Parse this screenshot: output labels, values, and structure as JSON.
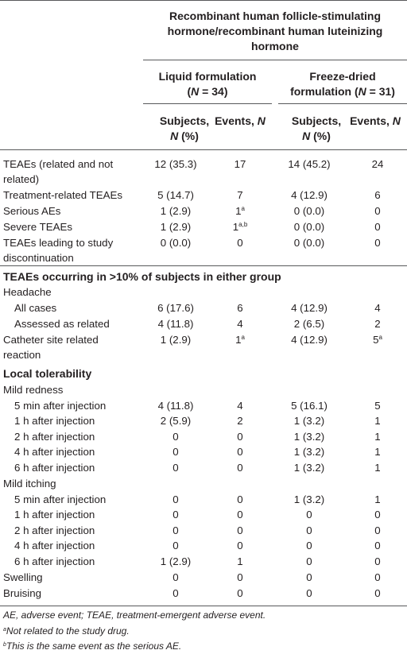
{
  "header": {
    "group": [
      "Recombinant human follicle-stimulating",
      "hormone/recombinant human luteinizing",
      "hormone"
    ],
    "liquid": [
      "Liquid formulation",
      "(N = 34)"
    ],
    "freeze": [
      "Freeze-dried",
      "formulation (N = 31)"
    ],
    "subjects": [
      "Subjects,",
      "N (%)"
    ],
    "events": "Events, N"
  },
  "rows": [
    {
      "label": "TEAEs (related and not",
      "label2": "related)",
      "ls": "12 (35.3)",
      "le": "17",
      "fs": "14 (45.2)",
      "fe": "24"
    },
    {
      "label": "Treatment-related TEAEs",
      "ls": "5 (14.7)",
      "le": "7",
      "fs": "4 (12.9)",
      "fe": "6"
    },
    {
      "label": "Serious AEs",
      "ls": "1 (2.9)",
      "le": "1",
      "le_sup": "a",
      "fs": "0 (0.0)",
      "fe": "0"
    },
    {
      "label": "Severe TEAEs",
      "ls": "1 (2.9)",
      "le": "1",
      "le_sup": "a,b",
      "fs": "0 (0.0)",
      "fe": "0"
    },
    {
      "label": "TEAEs leading to study",
      "label2": "discontinuation",
      "ls": "0 (0.0)",
      "le": "0",
      "fs": "0 (0.0)",
      "fe": "0"
    }
  ],
  "section1": "TEAEs occurring in >10% of subjects in either group",
  "headache": {
    "label": "Headache",
    "rows": [
      {
        "label": "All cases",
        "ls": "6 (17.6)",
        "le": "6",
        "fs": "4 (12.9)",
        "fe": "4"
      },
      {
        "label": "Assessed as related",
        "ls": "4 (11.8)",
        "le": "4",
        "fs": "2 (6.5)",
        "fe": "2"
      }
    ]
  },
  "catheter": {
    "label": "Catheter site related",
    "label2": "reaction",
    "ls": "1 (2.9)",
    "le": "1",
    "le_sup": "a",
    "fs": "4 (12.9)",
    "fe": "5",
    "fe_sup": "a"
  },
  "section2": "Local tolerability",
  "redness": {
    "label": "Mild redness",
    "rows": [
      {
        "label": "5 min after injection",
        "ls": "4 (11.8)",
        "le": "4",
        "fs": "5 (16.1)",
        "fe": "5"
      },
      {
        "label": "1 h after injection",
        "ls": "2 (5.9)",
        "le": "2",
        "fs": "1 (3.2)",
        "fe": "1"
      },
      {
        "label": "2 h after injection",
        "ls": "0",
        "le": "0",
        "fs": "1 (3.2)",
        "fe": "1"
      },
      {
        "label": "4 h after injection",
        "ls": "0",
        "le": "0",
        "fs": "1 (3.2)",
        "fe": "1"
      },
      {
        "label": "6 h after injection",
        "ls": "0",
        "le": "0",
        "fs": "1 (3.2)",
        "fe": "1"
      }
    ]
  },
  "itching": {
    "label": "Mild itching",
    "rows": [
      {
        "label": "5 min after injection",
        "ls": "0",
        "le": "0",
        "fs": "1 (3.2)",
        "fe": "1"
      },
      {
        "label": "1 h after injection",
        "ls": "0",
        "le": "0",
        "fs": "0",
        "fe": "0"
      },
      {
        "label": "2 h after injection",
        "ls": "0",
        "le": "0",
        "fs": "0",
        "fe": "0"
      },
      {
        "label": "4 h after injection",
        "ls": "0",
        "le": "0",
        "fs": "0",
        "fe": "0"
      },
      {
        "label": "6 h after injection",
        "ls": "1 (2.9)",
        "le": "1",
        "fs": "0",
        "fe": "0"
      }
    ]
  },
  "tail": [
    {
      "label": "Swelling",
      "ls": "0",
      "le": "0",
      "fs": "0",
      "fe": "0"
    },
    {
      "label": "Bruising",
      "ls": "0",
      "le": "0",
      "fs": "0",
      "fe": "0"
    }
  ],
  "footnotes": {
    "abbrev": "AE, adverse event; TEAE, treatment-emergent adverse event.",
    "a_sup": "a",
    "a": "Not related to the study drug.",
    "b_sup": "b",
    "b": "This is the same event as the serious AE."
  }
}
